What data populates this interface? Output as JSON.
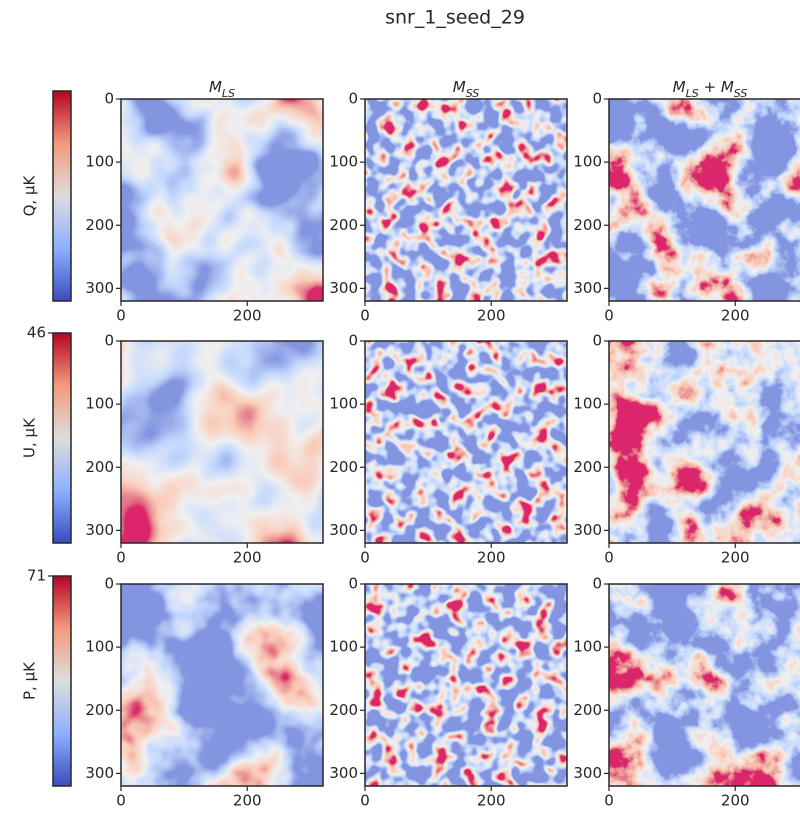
{
  "title": "snr_1_seed_29",
  "chart_data": [
    {
      "type": "heatmap",
      "cmap": "coolwarm",
      "title_parts": [
        {
          "text": "M"
        },
        {
          "text": "LS",
          "sub": true
        }
      ],
      "ylabel": "Q, μK",
      "colorbar": {
        "cmap": "coolwarm"
      },
      "xlim": [
        0,
        320
      ],
      "ylim": [
        320,
        0
      ],
      "xticks": [
        0,
        200
      ],
      "yticks": [
        0,
        100,
        200,
        300
      ]
    },
    {
      "type": "heatmap",
      "cmap": "coolwarm",
      "title_parts": [
        {
          "text": "M"
        },
        {
          "text": "SS",
          "sub": true
        }
      ],
      "xlim": [
        0,
        320
      ],
      "ylim": [
        320,
        0
      ],
      "xticks": [
        0,
        200
      ],
      "yticks": [
        0,
        100,
        200,
        300
      ]
    },
    {
      "type": "heatmap",
      "cmap": "coolwarm",
      "title_parts": [
        {
          "text": "M"
        },
        {
          "text": "LS",
          "sub": true
        },
        {
          "text": " + "
        },
        {
          "text": "M"
        },
        {
          "text": "SS",
          "sub": true
        }
      ],
      "xlim": [
        0,
        320
      ],
      "ylim": [
        320,
        0
      ],
      "xticks": [
        0,
        200
      ],
      "yticks": [
        0,
        100,
        200,
        300
      ]
    },
    {
      "type": "heatmap",
      "cmap": "coolwarm",
      "ylabel": "U, μK",
      "colorbar": {
        "cmap": "coolwarm",
        "clim": [
          -46,
          46
        ],
        "ticks": [
          46
        ]
      },
      "xlim": [
        0,
        320
      ],
      "ylim": [
        320,
        0
      ],
      "xticks": [
        0,
        200
      ],
      "yticks": [
        0,
        100,
        200,
        300
      ]
    },
    {
      "type": "heatmap",
      "cmap": "coolwarm",
      "xlim": [
        0,
        320
      ],
      "ylim": [
        320,
        0
      ],
      "xticks": [
        0,
        200
      ],
      "yticks": [
        0,
        100,
        200,
        300
      ]
    },
    {
      "type": "heatmap",
      "cmap": "coolwarm",
      "xlim": [
        0,
        320
      ],
      "ylim": [
        320,
        0
      ],
      "xticks": [
        0,
        200
      ],
      "yticks": [
        0,
        100,
        200,
        300
      ]
    },
    {
      "type": "heatmap",
      "cmap": "coolwarm",
      "ylabel": "P, μK",
      "colorbar": {
        "cmap": "coolwarm",
        "clim": [
          0,
          71
        ],
        "ticks": [
          71
        ]
      },
      "xlim": [
        0,
        320
      ],
      "ylim": [
        320,
        0
      ],
      "xticks": [
        0,
        200
      ],
      "yticks": [
        0,
        100,
        200,
        300
      ]
    },
    {
      "type": "heatmap",
      "cmap": "coolwarm",
      "xlim": [
        0,
        320
      ],
      "ylim": [
        320,
        0
      ],
      "xticks": [
        0,
        200
      ],
      "yticks": [
        0,
        100,
        200,
        300
      ]
    },
    {
      "type": "heatmap",
      "cmap": "coolwarm",
      "xlim": [
        0,
        320
      ],
      "ylim": [
        320,
        0
      ],
      "xticks": [
        0,
        200
      ],
      "yticks": [
        0,
        100,
        200,
        300
      ]
    }
  ]
}
